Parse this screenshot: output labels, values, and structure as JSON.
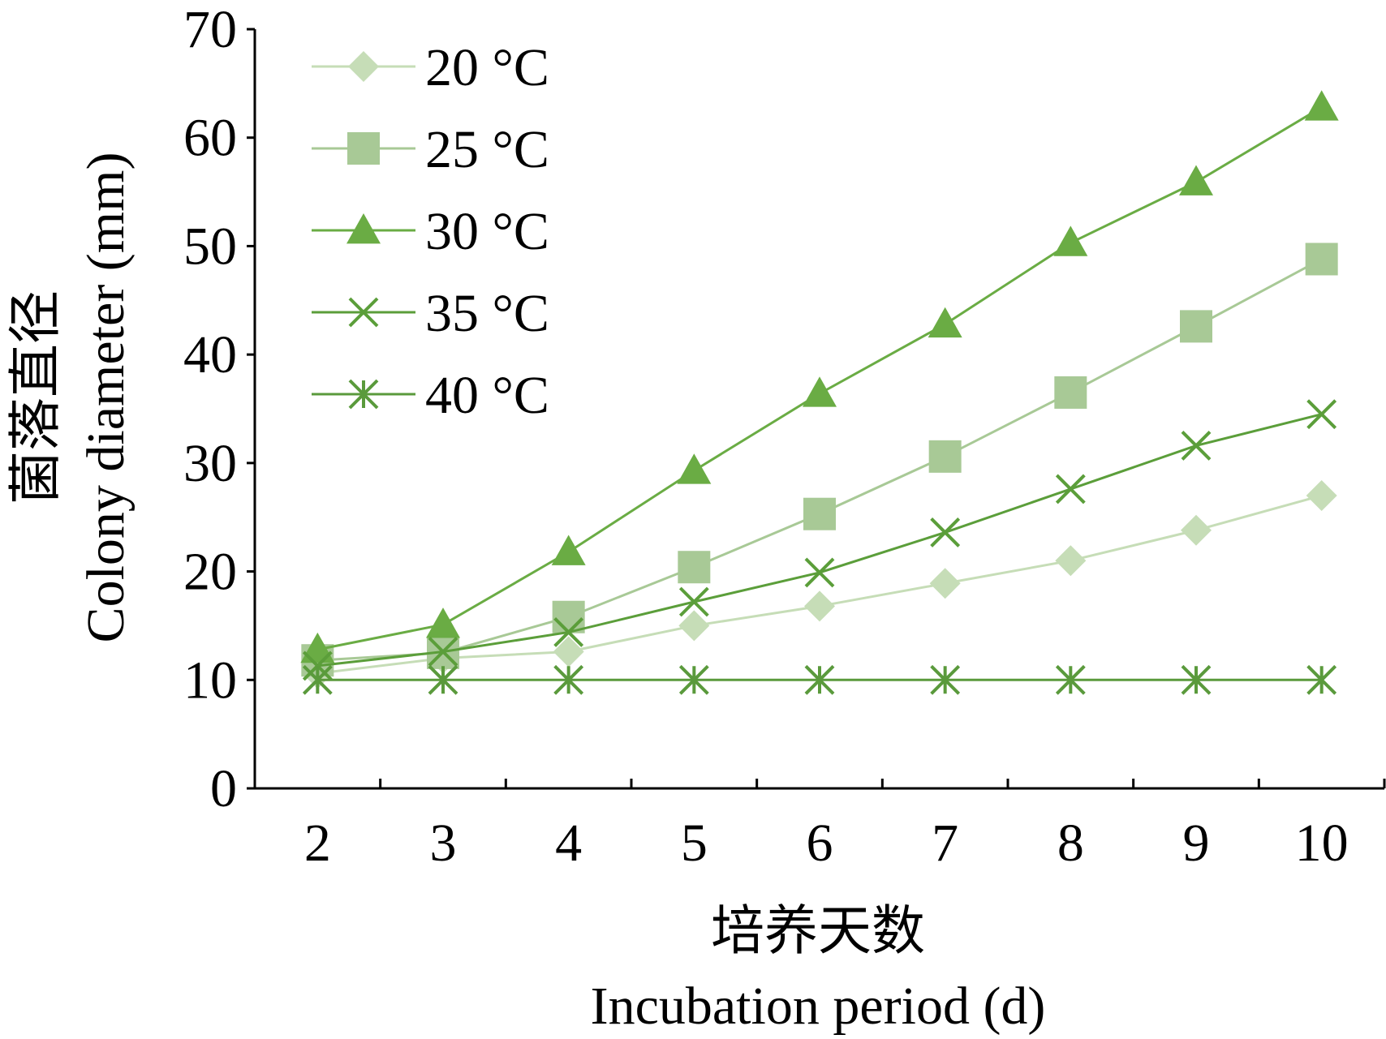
{
  "chart_data": {
    "type": "line",
    "title": "",
    "x": [
      2,
      3,
      4,
      5,
      6,
      7,
      8,
      9,
      10
    ],
    "xlabel_cn": "培养天数",
    "xlabel": "Incubation period (d)",
    "ylabel_cn": "菌落直径",
    "ylabel": "Colony diameter (mm)",
    "ylim": [
      0,
      70
    ],
    "yticks": [
      0,
      10,
      20,
      30,
      40,
      50,
      60,
      70
    ],
    "grid": false,
    "legend_position": "top-left",
    "series": [
      {
        "name": "20 °C",
        "marker": "diamond",
        "color": "#c6ddb7",
        "values": [
          10.6,
          12.0,
          12.6,
          15.0,
          16.8,
          18.9,
          21.0,
          23.8,
          27.0
        ]
      },
      {
        "name": "25 °C",
        "marker": "square",
        "color": "#a8c996",
        "values": [
          11.8,
          12.5,
          15.8,
          20.4,
          25.3,
          30.6,
          36.5,
          42.6,
          48.8
        ]
      },
      {
        "name": "30 °C",
        "marker": "triangle",
        "color": "#6aac44",
        "values": [
          12.8,
          15.1,
          21.8,
          29.3,
          36.4,
          42.8,
          50.3,
          55.9,
          62.8
        ]
      },
      {
        "name": "35 °C",
        "marker": "x",
        "color": "#5b9e3a",
        "values": [
          11.3,
          12.6,
          14.4,
          17.2,
          19.9,
          23.6,
          27.6,
          31.6,
          34.5
        ]
      },
      {
        "name": "40 °C",
        "marker": "asterisk",
        "color": "#5a9a3c",
        "values": [
          10.0,
          10.0,
          10.0,
          10.0,
          10.0,
          10.0,
          10.0,
          10.0,
          10.0
        ]
      }
    ]
  }
}
